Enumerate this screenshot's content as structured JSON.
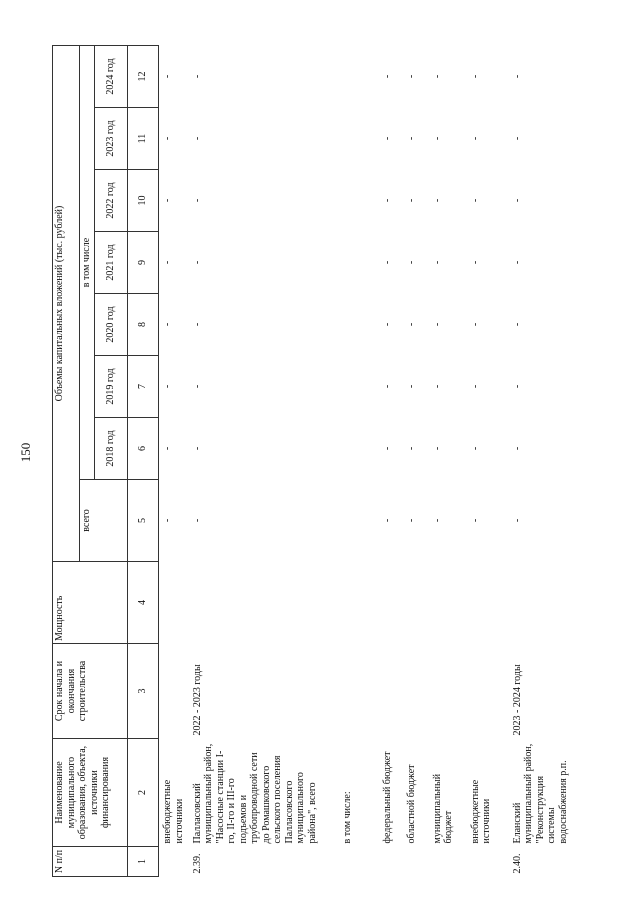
{
  "page_number": "150",
  "table": {
    "header": {
      "n": "N п/п",
      "name": "Наименование муниципального образования, объекта, источники финансирования",
      "term": "Срок начала и окончания строительства",
      "power": "Мощность",
      "investments": "Объемы капитальных вложений (тыс. рублей)",
      "total": "всего",
      "including": "в том числе",
      "years": [
        "2018 год",
        "2019 год",
        "2020 год",
        "2021 год",
        "2022 год",
        "2023 год",
        "2024 год"
      ]
    },
    "column_numbers": [
      "1",
      "2",
      "3",
      "4",
      "5",
      "6",
      "7",
      "8",
      "9",
      "10",
      "11",
      "12"
    ],
    "rows": [
      {
        "name": "внебюджетные источники",
        "values": [
          "-",
          "-",
          "-",
          "-",
          "-",
          "-",
          "-",
          "-"
        ]
      },
      {
        "n": "2.39.",
        "name": "Палласовский муниципальный район, \"Насосные станции I-го, II-го и III-го подъемов и трубопроводной сети до Ромашковского сельского поселения Палласовского муниципального района\", всего",
        "term": "2022 - 2023 годы",
        "values": [
          "-",
          "-",
          "-",
          "-",
          "-",
          "-",
          "-",
          "-"
        ]
      },
      {
        "name": "в том числе:"
      },
      {
        "name": "федеральный бюджет",
        "values": [
          "-",
          "-",
          "-",
          "-",
          "-",
          "-",
          "-",
          "-"
        ]
      },
      {
        "name": "областной бюджет",
        "values": [
          "-",
          "-",
          "-",
          "-",
          "-",
          "-",
          "-",
          "-"
        ]
      },
      {
        "name": "муниципальный бюджет",
        "values": [
          "-",
          "-",
          "-",
          "-",
          "-",
          "-",
          "-",
          "-"
        ]
      },
      {
        "name": "внебюджетные источники",
        "values": [
          "-",
          "-",
          "-",
          "-",
          "-",
          "-",
          "-",
          "-"
        ]
      },
      {
        "n": "2.40.",
        "name": "Еланский муниципальный район, \"Реконструкция системы водоснабжения р.п.",
        "term": "2023 - 2024 годы",
        "values": [
          "-",
          "-",
          "-",
          "-",
          "-",
          "-",
          "-",
          "-"
        ]
      }
    ]
  }
}
